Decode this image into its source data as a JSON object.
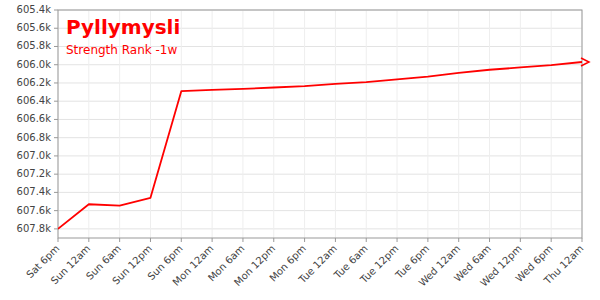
{
  "chart_data": {
    "type": "line",
    "title": "Pyllymysli",
    "subtitle": "Strength Rank -1w",
    "categories": [
      "Sat 6pm",
      "Sun 12am",
      "Sun 6am",
      "Sun 12pm",
      "Sun 6pm",
      "Mon 12am",
      "Mon 6am",
      "Mon 12pm",
      "Mon 6pm",
      "Tue 12am",
      "Tue 6am",
      "Tue 12pm",
      "Tue 6pm",
      "Wed 12am",
      "Wed 6am",
      "Wed 12pm",
      "Wed 6pm",
      "Thu 12am"
    ],
    "values": [
      607800,
      607530,
      607545,
      607460,
      606290,
      606275,
      606265,
      606250,
      606235,
      606210,
      606190,
      606160,
      606130,
      606090,
      606055,
      606030,
      606005,
      605970
    ],
    "color": "#ff0000",
    "ylim": [
      607900,
      605400
    ],
    "yticks": [
      {
        "value": 605400,
        "label": "605.4k"
      },
      {
        "value": 605600,
        "label": "605.6k"
      },
      {
        "value": 605800,
        "label": "605.8k"
      },
      {
        "value": 606000,
        "label": "606.0k"
      },
      {
        "value": 606200,
        "label": "606.2k"
      },
      {
        "value": 606400,
        "label": "606.4k"
      },
      {
        "value": 606600,
        "label": "606.6k"
      },
      {
        "value": 606800,
        "label": "606.8k"
      },
      {
        "value": 607000,
        "label": "607.0k"
      },
      {
        "value": 607200,
        "label": "607.2k"
      },
      {
        "value": 607400,
        "label": "607.4k"
      },
      {
        "value": 607600,
        "label": "607.6k"
      },
      {
        "value": 607800,
        "label": "607.8k"
      }
    ],
    "grid": true
  }
}
